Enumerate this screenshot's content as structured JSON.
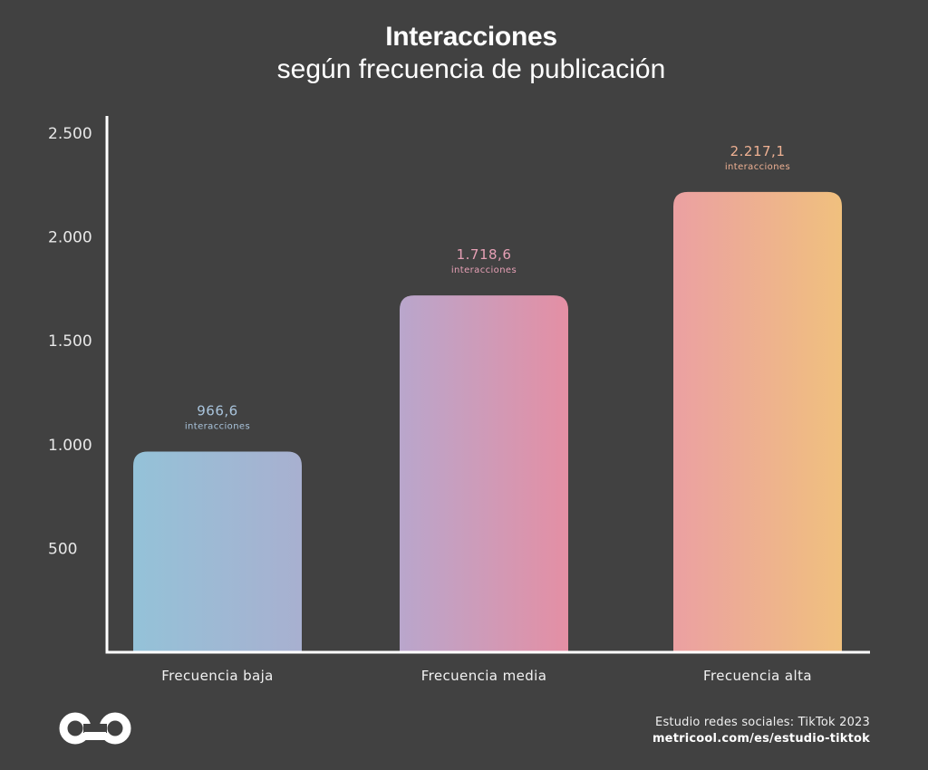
{
  "header": {
    "title": "Interacciones",
    "subtitle": "según frecuencia de publicación"
  },
  "chart_data": {
    "type": "bar",
    "categories": [
      "Frecuencia baja",
      "Frecuencia media",
      "Frecuencia alta"
    ],
    "values": [
      966.6,
      1718.6,
      2217.1
    ],
    "value_labels": [
      "966,6",
      "1.718,6",
      "2.217,1"
    ],
    "value_unit": "interacciones",
    "y_ticks": [
      500,
      1000,
      1500,
      2000,
      2500
    ],
    "y_tick_labels": [
      "500",
      "1.000",
      "1.500",
      "2.000",
      "2.500"
    ],
    "ylim": [
      0,
      2500
    ],
    "title": "Interacciones",
    "subtitle": "según frecuencia de publicación",
    "xlabel": "",
    "ylabel": "",
    "grid": false,
    "bar_gradients": [
      [
        "#94c2d8",
        "#a8b0d0"
      ],
      [
        "#b9a6cc",
        "#e48fa4"
      ],
      [
        "#eba0a2",
        "#f0c07e"
      ]
    ],
    "label_colors": [
      "#a9c4dc",
      "#e6a0b5",
      "#efb193"
    ]
  },
  "footer": {
    "source": "Estudio redes sociales: TikTok 2023",
    "url": "metricool.com/es/estudio-tiktok"
  },
  "brand": {
    "logo_icon": "metricool-infinity-logo",
    "background": "#414141"
  }
}
